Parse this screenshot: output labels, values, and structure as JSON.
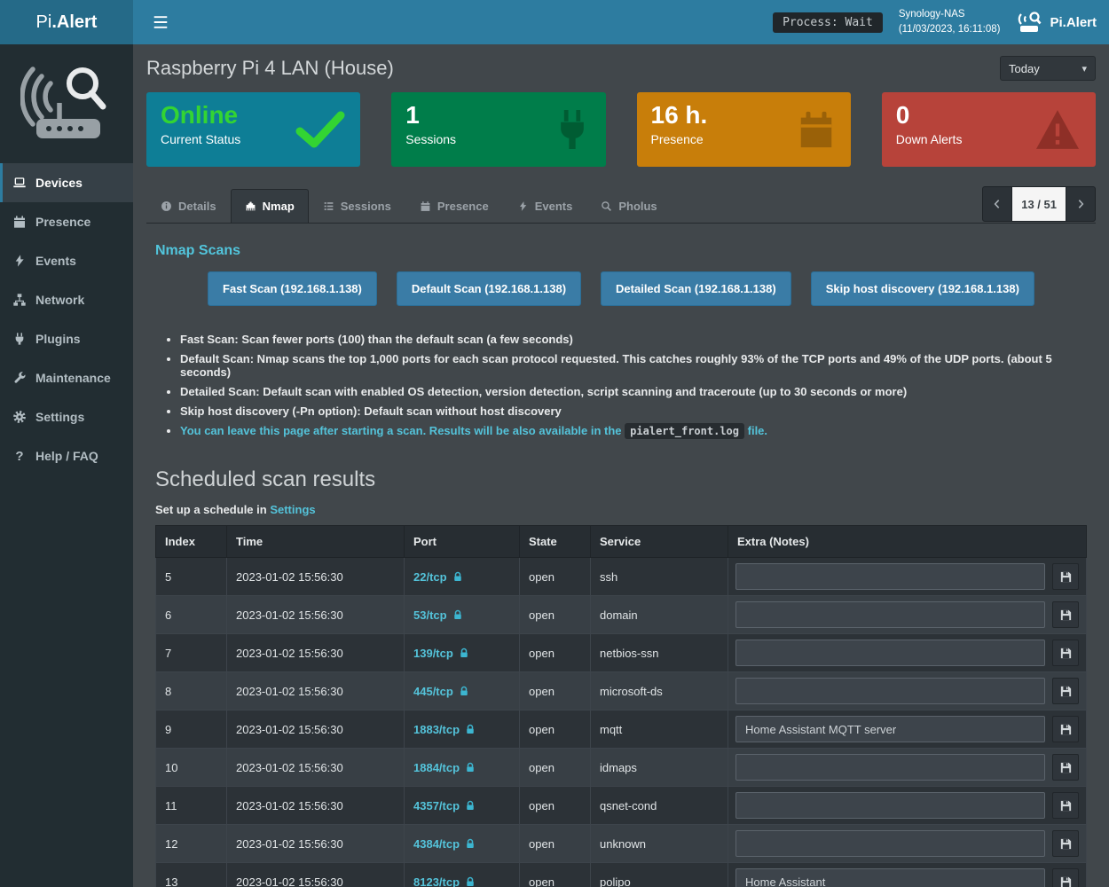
{
  "theme": {
    "navbar": "#2d7ca0",
    "logo_bg": "#256a88",
    "sidebar_bg": "#222d32",
    "content_bg": "#41474b",
    "accent_cyan": "#54c3da",
    "button_blue": "#3a7ca6",
    "card_info": "#0e7e96",
    "card_green": "#007d4a",
    "card_orange": "#c87e0a",
    "card_red": "#b7433a",
    "online_green": "#33d433"
  },
  "header": {
    "brand_light": "Pi",
    "brand_bold": ".Alert",
    "menu_icon": "hamburger-icon",
    "process_badge": "Process: Wait",
    "host_name": "Synology-NAS",
    "host_time": "(11/03/2023, 16:11:08)",
    "right_brand": "Pi.Alert",
    "right_brand_icon": "router-icon"
  },
  "sidebar": {
    "logo_icon": "router-search-logo",
    "items": [
      {
        "label": "Devices",
        "icon": "laptop-icon",
        "active": true
      },
      {
        "label": "Presence",
        "icon": "calendar-icon",
        "active": false
      },
      {
        "label": "Events",
        "icon": "bolt-icon",
        "active": false
      },
      {
        "label": "Network",
        "icon": "sitemap-icon",
        "active": false
      },
      {
        "label": "Plugins",
        "icon": "plug-icon",
        "active": false
      },
      {
        "label": "Maintenance",
        "icon": "wrench-icon",
        "active": false
      },
      {
        "label": "Settings",
        "icon": "gear-icon",
        "active": false
      },
      {
        "label": "Help / FAQ",
        "icon": "question-icon",
        "active": false
      }
    ]
  },
  "page": {
    "title": "Raspberry Pi 4 LAN (House)",
    "period_selected": "Today"
  },
  "cards": [
    {
      "value": "Online",
      "label": "Current Status",
      "icon": "check-icon",
      "bg": "#0e7e96",
      "value_color": "#33d433"
    },
    {
      "value": "1",
      "label": "Sessions",
      "icon": "plug-icon",
      "bg": "#007d4a"
    },
    {
      "value": "16 h.",
      "label": "Presence",
      "icon": "calendar-icon",
      "bg": "#c87e0a"
    },
    {
      "value": "0",
      "label": "Down Alerts",
      "icon": "warning-icon",
      "bg": "#b7433a"
    }
  ],
  "tabs": [
    {
      "label": "Details",
      "icon": "info-icon",
      "active": false
    },
    {
      "label": "Nmap",
      "icon": "ethernet-icon",
      "active": true
    },
    {
      "label": "Sessions",
      "icon": "list-icon",
      "active": false
    },
    {
      "label": "Presence",
      "icon": "calendar-icon",
      "active": false
    },
    {
      "label": "Events",
      "icon": "bolt-icon",
      "active": false
    },
    {
      "label": "Pholus",
      "icon": "search-icon",
      "active": false
    }
  ],
  "pagination": {
    "current": "13 / 51",
    "prev_icon": "chevron-left-icon",
    "next_icon": "chevron-right-icon"
  },
  "nmap": {
    "heading": "Nmap Scans",
    "scan_buttons": [
      "Fast Scan (192.168.1.138)",
      "Default Scan (192.168.1.138)",
      "Detailed Scan (192.168.1.138)",
      "Skip host discovery (192.168.1.138)"
    ],
    "notes": [
      "Fast Scan: Scan fewer ports (100) than the default scan (a few seconds)",
      "Default Scan: Nmap scans the top 1,000 ports for each scan protocol requested. This catches roughly 93% of the TCP ports and 49% of the UDP ports. (about 5 seconds)",
      "Detailed Scan: Default scan with enabled OS detection, version detection, script scanning and traceroute (up to 30 seconds or more)",
      "Skip host discovery (-Pn option): Default scan without host discovery"
    ],
    "note_link_pre": "You can leave this page after starting a scan. Results will be also available in the",
    "note_link_code": "pialert_front.log",
    "note_link_post": "file."
  },
  "results": {
    "heading": "Scheduled scan results",
    "schedule_text": "Set up a schedule in",
    "schedule_link": "Settings",
    "table": {
      "headers": [
        "Index",
        "Time",
        "Port",
        "State",
        "Service",
        "Extra (Notes)"
      ],
      "rows": [
        {
          "index": "5",
          "time": "2023-01-02 15:56:30",
          "port": "22/tcp",
          "state": "open",
          "service": "ssh",
          "note": ""
        },
        {
          "index": "6",
          "time": "2023-01-02 15:56:30",
          "port": "53/tcp",
          "state": "open",
          "service": "domain",
          "note": ""
        },
        {
          "index": "7",
          "time": "2023-01-02 15:56:30",
          "port": "139/tcp",
          "state": "open",
          "service": "netbios-ssn",
          "note": ""
        },
        {
          "index": "8",
          "time": "2023-01-02 15:56:30",
          "port": "445/tcp",
          "state": "open",
          "service": "microsoft-ds",
          "note": ""
        },
        {
          "index": "9",
          "time": "2023-01-02 15:56:30",
          "port": "1883/tcp",
          "state": "open",
          "service": "mqtt",
          "note": "Home Assistant MQTT server"
        },
        {
          "index": "10",
          "time": "2023-01-02 15:56:30",
          "port": "1884/tcp",
          "state": "open",
          "service": "idmaps",
          "note": ""
        },
        {
          "index": "11",
          "time": "2023-01-02 15:56:30",
          "port": "4357/tcp",
          "state": "open",
          "service": "qsnet-cond",
          "note": ""
        },
        {
          "index": "12",
          "time": "2023-01-02 15:56:30",
          "port": "4384/tcp",
          "state": "open",
          "service": "unknown",
          "note": ""
        },
        {
          "index": "13",
          "time": "2023-01-02 15:56:30",
          "port": "8123/tcp",
          "state": "open",
          "service": "polipo",
          "note": "Home Assistant"
        }
      ]
    }
  }
}
